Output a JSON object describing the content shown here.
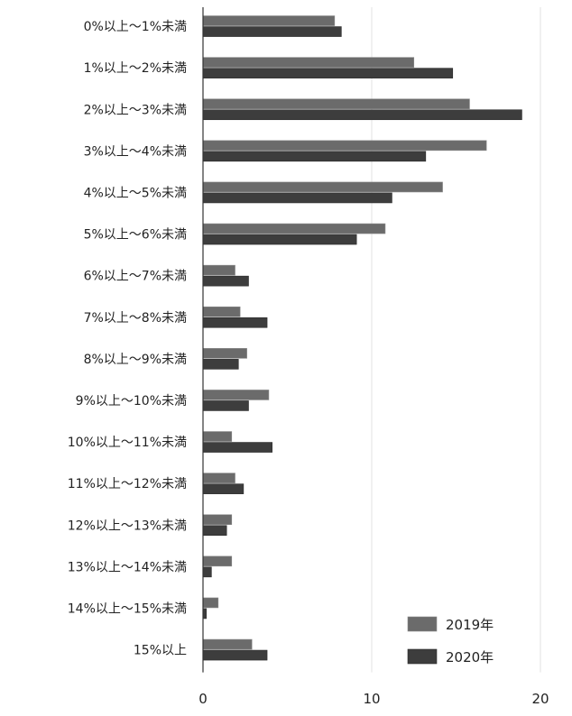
{
  "chart_data": {
    "type": "bar",
    "orientation": "horizontal",
    "categories": [
      "0%以上～1%未満",
      "1%以上～2%未満",
      "2%以上～3%未満",
      "3%以上～4%未満",
      "4%以上～5%未満",
      "5%以上～6%未満",
      "6%以上～7%未満",
      "7%以上～8%未満",
      "8%以上～9%未満",
      "9%以上～10%未満",
      "10%以上～11%未満",
      "11%以上～12%未満",
      "12%以上～13%未満",
      "13%以上～14%未満",
      "14%以上～15%未満",
      "15%以上"
    ],
    "series": [
      {
        "name": "2019年",
        "color": "#6b6b6b",
        "values": [
          7.8,
          12.5,
          15.8,
          16.8,
          14.2,
          10.8,
          1.9,
          2.2,
          2.6,
          3.9,
          1.7,
          1.9,
          1.7,
          1.7,
          0.9,
          2.9
        ]
      },
      {
        "name": "2020年",
        "color": "#3d3d3d",
        "values": [
          8.2,
          14.8,
          18.9,
          13.2,
          11.2,
          9.1,
          2.7,
          3.8,
          2.1,
          2.7,
          4.1,
          2.4,
          1.4,
          0.5,
          0.2,
          3.8
        ]
      }
    ],
    "xlim": [
      0,
      20
    ],
    "xticks": [
      "0",
      "10",
      "20"
    ],
    "grid": true,
    "legend_position": "bottom-right",
    "title": "",
    "xlabel": "",
    "ylabel": ""
  }
}
